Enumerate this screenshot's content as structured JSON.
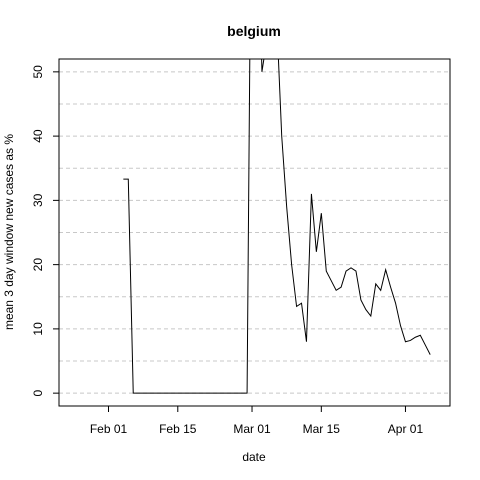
{
  "chart_data": {
    "type": "line",
    "title": "belgium",
    "xlabel": "date",
    "ylabel": "mean  3  day window new cases as %",
    "x_ticks": [
      "2020-02-01",
      "2020-02-15",
      "2020-03-01",
      "2020-03-15",
      "2020-04-01"
    ],
    "x_tick_labels": [
      "Feb 01",
      "Feb 15",
      "Mar 01",
      "Mar 15",
      "Apr 01"
    ],
    "y_ticks": [
      0,
      10,
      20,
      30,
      40,
      50
    ],
    "xlim": [
      "2020-01-22",
      "2020-04-10"
    ],
    "ylim": [
      -2,
      52
    ],
    "grid": "horizontal dashed",
    "line_color": "#000000",
    "series": [
      {
        "x": [
          "2020-02-04",
          "2020-02-05",
          "2020-02-06",
          "2020-02-07",
          "2020-02-08",
          "2020-02-09",
          "2020-02-10",
          "2020-02-11",
          "2020-02-12",
          "2020-02-13",
          "2020-02-14",
          "2020-02-15",
          "2020-02-16",
          "2020-02-17",
          "2020-02-18",
          "2020-02-19",
          "2020-02-20",
          "2020-02-21",
          "2020-02-22",
          "2020-02-23",
          "2020-02-24",
          "2020-02-25",
          "2020-02-26",
          "2020-02-27",
          "2020-02-28",
          "2020-02-29",
          "2020-03-01",
          "2020-03-02",
          "2020-03-03",
          "2020-03-04",
          "2020-03-05",
          "2020-03-06",
          "2020-03-07",
          "2020-03-08",
          "2020-03-09",
          "2020-03-10",
          "2020-03-11",
          "2020-03-12",
          "2020-03-13",
          "2020-03-14",
          "2020-03-15",
          "2020-03-16",
          "2020-03-17",
          "2020-03-18",
          "2020-03-19",
          "2020-03-20",
          "2020-03-21",
          "2020-03-22",
          "2020-03-23",
          "2020-03-24",
          "2020-03-25",
          "2020-03-26",
          "2020-03-27",
          "2020-03-28",
          "2020-03-29",
          "2020-03-30",
          "2020-03-31",
          "2020-04-01",
          "2020-04-02",
          "2020-04-03",
          "2020-04-04",
          "2020-04-05",
          "2020-04-06"
        ],
        "y": [
          33.3,
          33.3,
          0,
          0,
          0,
          0,
          0,
          0,
          0,
          0,
          0,
          0,
          0,
          0,
          0,
          0,
          0,
          0,
          0,
          0,
          0,
          0,
          0,
          0,
          0,
          0,
          95,
          85,
          50,
          55,
          60,
          58,
          40,
          29,
          20,
          13.5,
          14,
          8,
          31,
          22,
          28,
          19,
          17.5,
          16,
          16.5,
          19,
          19.5,
          19,
          14.5,
          13,
          12,
          17,
          16,
          19.2,
          16.5,
          14,
          10.5,
          8,
          8.2,
          8.7,
          9,
          7.5,
          6
        ]
      }
    ]
  }
}
